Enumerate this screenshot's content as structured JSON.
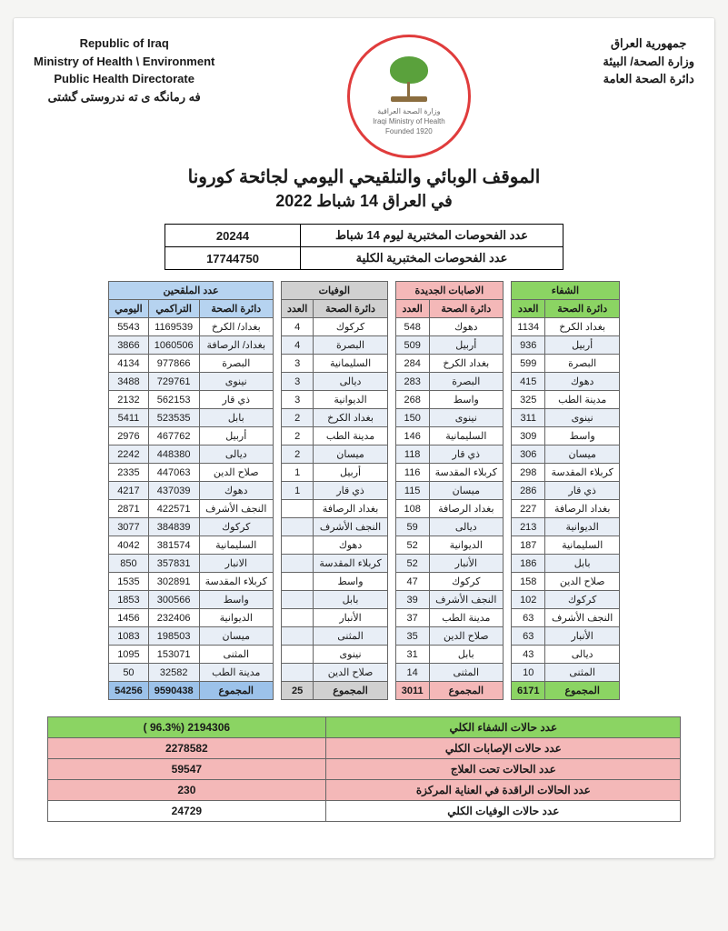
{
  "header": {
    "left": {
      "line1": "Republic of Iraq",
      "line2": "Ministry of Health \\ Environment",
      "line3": "Public Health Directorate",
      "line4": "فه رمانگه ی ته ندروستی گشتی"
    },
    "right": {
      "line1": "جمهورية العراق",
      "line2": "وزارة الصحة/ البيئة",
      "line3": "دائرة الصحة العامة"
    },
    "logo_text1": "وزارة الصحة العراقية",
    "logo_text2": "Iraqi Ministry of Health",
    "logo_text3": "Founded 1920"
  },
  "title": {
    "line1": "الموقف الوبائي والتلقيحي اليومي لجائحة كورونا",
    "line2": "في العراق  14  شباط 2022"
  },
  "tests": {
    "daily_label": "عدد الفحوصات المختبرية  ليوم  14  شباط",
    "daily_value": "20244",
    "total_label": "عدد الفحوصات المختبرية الكلية",
    "total_value": "17744750"
  },
  "colors": {
    "green": "#8bd463",
    "pink": "#f4b8b8",
    "gray": "#d0d0d0",
    "blue": "#b6d3f0",
    "alt": "#e8eef6",
    "border": "#666666"
  },
  "labels": {
    "recovery": "الشفاء",
    "new_cases": "الاصابات الجديدة",
    "deaths": "الوفيات",
    "vaccinated": "عدد الملقحين",
    "directorate": "دائرة الصحة",
    "count": "العدد",
    "cumulative": "التراكمي",
    "daily": "اليومي",
    "total": "المجموع"
  },
  "recovery": {
    "rows": [
      {
        "dir": "بغداد الكرخ",
        "n": "1134"
      },
      {
        "dir": "أربيل",
        "n": "936"
      },
      {
        "dir": "البصرة",
        "n": "599"
      },
      {
        "dir": "دهوك",
        "n": "415"
      },
      {
        "dir": "مدينة الطب",
        "n": "325"
      },
      {
        "dir": "نينوى",
        "n": "311"
      },
      {
        "dir": "واسط",
        "n": "309"
      },
      {
        "dir": "ميسان",
        "n": "306"
      },
      {
        "dir": "كربلاء المقدسة",
        "n": "298"
      },
      {
        "dir": "ذي قار",
        "n": "286"
      },
      {
        "dir": "بغداد الرصافة",
        "n": "227"
      },
      {
        "dir": "الديوانية",
        "n": "213"
      },
      {
        "dir": "السليمانية",
        "n": "187"
      },
      {
        "dir": "بابل",
        "n": "186"
      },
      {
        "dir": "صلاح الدين",
        "n": "158"
      },
      {
        "dir": "كركوك",
        "n": "102"
      },
      {
        "dir": "النجف الأشرف",
        "n": "63"
      },
      {
        "dir": "الأنبار",
        "n": "63"
      },
      {
        "dir": "ديالى",
        "n": "43"
      },
      {
        "dir": "المثنى",
        "n": "10"
      }
    ],
    "total": "6171"
  },
  "new_cases": {
    "rows": [
      {
        "dir": "دهوك",
        "n": "548"
      },
      {
        "dir": "أربيل",
        "n": "509"
      },
      {
        "dir": "بغداد الكرخ",
        "n": "284"
      },
      {
        "dir": "البصرة",
        "n": "283"
      },
      {
        "dir": "واسط",
        "n": "268"
      },
      {
        "dir": "نينوى",
        "n": "150"
      },
      {
        "dir": "السليمانية",
        "n": "146"
      },
      {
        "dir": "ذي قار",
        "n": "118"
      },
      {
        "dir": "كربلاء المقدسة",
        "n": "116"
      },
      {
        "dir": "ميسان",
        "n": "115"
      },
      {
        "dir": "بغداد الرصافة",
        "n": "108"
      },
      {
        "dir": "ديالى",
        "n": "59"
      },
      {
        "dir": "الديوانية",
        "n": "52"
      },
      {
        "dir": "الأنبار",
        "n": "52"
      },
      {
        "dir": "كركوك",
        "n": "47"
      },
      {
        "dir": "النجف الأشرف",
        "n": "39"
      },
      {
        "dir": "مدينة الطب",
        "n": "37"
      },
      {
        "dir": "صلاح الدين",
        "n": "35"
      },
      {
        "dir": "بابل",
        "n": "31"
      },
      {
        "dir": "المثنى",
        "n": "14"
      }
    ],
    "total": "3011"
  },
  "deaths": {
    "rows": [
      {
        "dir": "كركوك",
        "n": "4"
      },
      {
        "dir": "البصرة",
        "n": "4"
      },
      {
        "dir": "السليمانية",
        "n": "3"
      },
      {
        "dir": "ديالى",
        "n": "3"
      },
      {
        "dir": "الديوانية",
        "n": "3"
      },
      {
        "dir": "بغداد الكرخ",
        "n": "2"
      },
      {
        "dir": "مدينة الطب",
        "n": "2"
      },
      {
        "dir": "ميسان",
        "n": "2"
      },
      {
        "dir": "أربيل",
        "n": "1"
      },
      {
        "dir": "ذي قار",
        "n": "1"
      },
      {
        "dir": "بغداد الرصافة",
        "n": ""
      },
      {
        "dir": "النجف الأشرف",
        "n": ""
      },
      {
        "dir": "دهوك",
        "n": ""
      },
      {
        "dir": "كربلاء المقدسة",
        "n": ""
      },
      {
        "dir": "واسط",
        "n": ""
      },
      {
        "dir": "بابل",
        "n": ""
      },
      {
        "dir": "الأنبار",
        "n": ""
      },
      {
        "dir": "المثنى",
        "n": ""
      },
      {
        "dir": "نينوى",
        "n": ""
      },
      {
        "dir": "صلاح الدين",
        "n": ""
      }
    ],
    "total": "25"
  },
  "vaccinated": {
    "rows": [
      {
        "dir": "بغداد/ الكرخ",
        "cum": "1169539",
        "day": "5543"
      },
      {
        "dir": "بغداد/ الرصافة",
        "cum": "1060506",
        "day": "3866"
      },
      {
        "dir": "البصرة",
        "cum": "977866",
        "day": "4134"
      },
      {
        "dir": "نينوى",
        "cum": "729761",
        "day": "3488"
      },
      {
        "dir": "ذي قار",
        "cum": "562153",
        "day": "2132"
      },
      {
        "dir": "بابل",
        "cum": "523535",
        "day": "5411"
      },
      {
        "dir": "أربيل",
        "cum": "467762",
        "day": "2976"
      },
      {
        "dir": "ديالى",
        "cum": "448380",
        "day": "2242"
      },
      {
        "dir": "صلاح الدين",
        "cum": "447063",
        "day": "2335"
      },
      {
        "dir": "دهوك",
        "cum": "437039",
        "day": "4217"
      },
      {
        "dir": "النجف الأشرف",
        "cum": "422571",
        "day": "2871"
      },
      {
        "dir": "كركوك",
        "cum": "384839",
        "day": "3077"
      },
      {
        "dir": "السليمانية",
        "cum": "381574",
        "day": "4042"
      },
      {
        "dir": "الانبار",
        "cum": "357831",
        "day": "850"
      },
      {
        "dir": "كربلاء المقدسة",
        "cum": "302891",
        "day": "1535"
      },
      {
        "dir": "واسط",
        "cum": "300566",
        "day": "1853"
      },
      {
        "dir": "الديوانية",
        "cum": "232406",
        "day": "1456"
      },
      {
        "dir": "ميسان",
        "cum": "198503",
        "day": "1083"
      },
      {
        "dir": "المثنى",
        "cum": "153071",
        "day": "1095"
      },
      {
        "dir": "مدينة الطب",
        "cum": "32582",
        "day": "50"
      }
    ],
    "total_cum": "9590438",
    "total_day": "54256"
  },
  "summary": {
    "rows": [
      {
        "label": "عدد حالات الشفاء الكلي",
        "value": "2194306  (96.3% )",
        "cls": "sum-green"
      },
      {
        "label": "عدد حالات الإصابات الكلي",
        "value": "2278582",
        "cls": "sum-pink"
      },
      {
        "label": "عدد الحالات تحت العلاج",
        "value": "59547",
        "cls": "sum-pink"
      },
      {
        "label": "عدد الحالات الراقدة في العناية المركزة",
        "value": "230",
        "cls": "sum-pink"
      },
      {
        "label": "عدد حالات الوفيات الكلي",
        "value": "24729",
        "cls": "sum-plain"
      }
    ]
  }
}
